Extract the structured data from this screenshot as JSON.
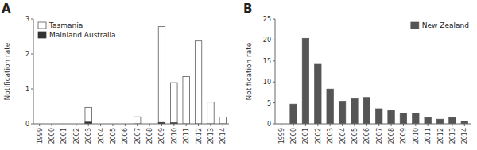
{
  "chart_data": [
    {
      "type": "bar",
      "title": "A",
      "categories": [
        "1999",
        "2000",
        "2001",
        "2002",
        "2003",
        "2004",
        "2005",
        "2006",
        "2007",
        "2008",
        "2009",
        "2010",
        "2011",
        "2012",
        "2013",
        "2014"
      ],
      "series": [
        {
          "name": "Tasmania",
          "color": "#ffffff",
          "values": [
            0,
            0,
            0,
            0,
            0.47,
            0,
            0,
            0,
            0.2,
            0,
            2.78,
            1.18,
            1.35,
            2.37,
            0.62,
            0.19
          ]
        },
        {
          "name": "Mainland Australia",
          "color": "#333333",
          "values": [
            0,
            0,
            0,
            0,
            0.05,
            0,
            0,
            0,
            0,
            0,
            0.04,
            0.03,
            0,
            0,
            0,
            0
          ]
        }
      ],
      "y_label": "Notification rate",
      "ylim": [
        0,
        3
      ],
      "yticks": [
        0,
        1,
        2,
        3
      ],
      "legend": "upper left"
    },
    {
      "type": "bar",
      "title": "B",
      "categories": [
        "1999",
        "2000",
        "2001",
        "2002",
        "2003",
        "2004",
        "2005",
        "2006",
        "2007",
        "2008",
        "2009",
        "2010",
        "2011",
        "2012",
        "2013",
        "2014"
      ],
      "series": [
        {
          "name": "New Zealand",
          "color": "#555555",
          "values": [
            0,
            4.7,
            20.4,
            14.2,
            8.3,
            5.4,
            6.0,
            6.3,
            3.6,
            3.2,
            2.5,
            2.5,
            1.5,
            1.1,
            1.5,
            0.6
          ]
        }
      ],
      "y_label": "Notification rate",
      "ylim": [
        0,
        25
      ],
      "yticks": [
        0,
        5,
        10,
        15,
        20,
        25
      ],
      "legend": "upper right"
    }
  ]
}
